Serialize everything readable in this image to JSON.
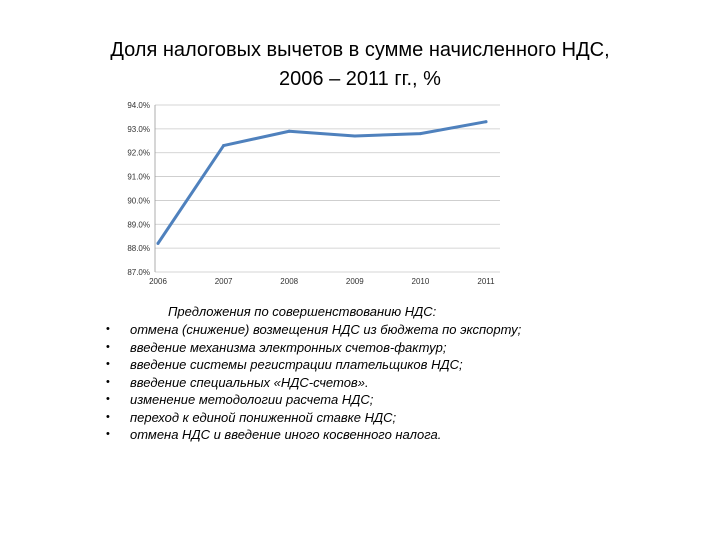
{
  "chart_data": {
    "type": "line",
    "title": [
      "Доля налоговых вычетов в сумме начисленного НДС,",
      "2006 – 2011 гг., %"
    ],
    "xlabel": "",
    "ylabel": "",
    "categories": [
      "2006",
      "2007",
      "2008",
      "2009",
      "2010",
      "2011"
    ],
    "series": [
      {
        "values": [
          88.2,
          92.3,
          92.9,
          92.7,
          92.8,
          93.3
        ],
        "color": "#4f81bd"
      }
    ],
    "ylim": [
      87,
      94
    ],
    "yticks": [
      {
        "value": 94,
        "label": "94.0%"
      },
      {
        "value": 93,
        "label": "93.0%"
      },
      {
        "value": 92,
        "label": "92.0%"
      },
      {
        "value": 91,
        "label": "91.0%"
      },
      {
        "value": 90,
        "label": "90.0%"
      },
      {
        "value": 89,
        "label": "89.0%"
      },
      {
        "value": 88,
        "label": "88.0%"
      },
      {
        "value": 87,
        "label": "87.0%"
      }
    ],
    "grid": true,
    "legend": "none"
  },
  "proposals": {
    "heading": "Предложения по совершенствованию НДС:",
    "bullet": "•",
    "items": [
      "отмена (снижение) возмещения НДС из бюджета по экспорту;",
      "введение механизма электронных счетов-фактур;",
      "введение системы регистрации плательщиков НДС;",
      "введение специальных «НДС-счетов».",
      "изменение методологии расчета НДС;",
      "переход к единой пониженной ставке НДС;",
      "отмена НДС и введение иного косвенного налога."
    ]
  }
}
